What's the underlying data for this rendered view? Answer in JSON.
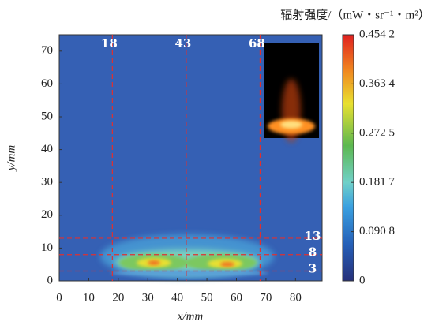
{
  "chart_data": {
    "type": "heatmap",
    "x_label": "x/mm",
    "y_label": "y/mm",
    "xlim": [
      0,
      89
    ],
    "ylim": [
      0,
      75
    ],
    "xticks": [
      0,
      10,
      20,
      30,
      40,
      50,
      60,
      70,
      80
    ],
    "yticks": [
      0,
      10,
      20,
      30,
      40,
      50,
      60,
      70
    ],
    "vlines": [
      18,
      43,
      68
    ],
    "hlines": [
      13,
      8,
      3
    ],
    "line_color": "#e03030",
    "colorbar": {
      "title": "辐射强度/（mW・sr⁻¹・m²）",
      "lim": [
        0,
        0.4542
      ],
      "ticks": [
        0,
        {
          "value": 0.0908,
          "label": "0.090 8"
        },
        {
          "value": 0.1817,
          "label": "0.181 7"
        },
        {
          "value": 0.2725,
          "label": "0.272 5"
        },
        {
          "value": 0.3634,
          "label": "0.363 4"
        },
        {
          "value": 0.4542,
          "label": "0.454 2"
        }
      ]
    }
  }
}
